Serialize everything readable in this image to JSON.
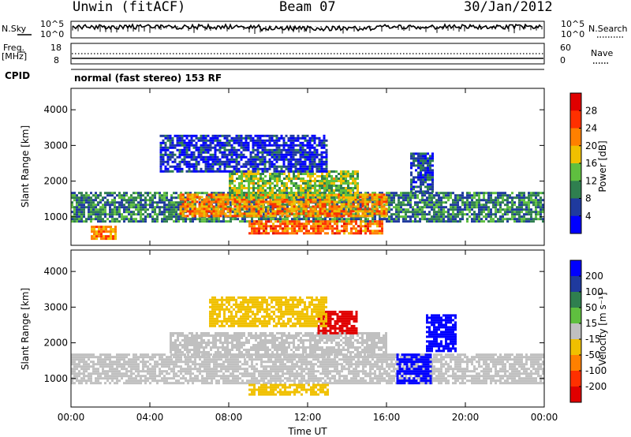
{
  "header": {
    "site_title": "Unwin (fitACF)",
    "beam": "Beam 07",
    "date": "30/Jan/2012"
  },
  "info_panels": {
    "nsky_label": "N.Sky",
    "nsearch_label": "N.Search",
    "nsky_ticks": [
      "10^5",
      "10^0"
    ],
    "nsearch_ticks": [
      "10^5",
      "10^0"
    ],
    "freq_label": "Freq.",
    "freq_unit": "[MHz]",
    "freq_ticks": [
      "18",
      "8"
    ],
    "nave_label": "Nave",
    "nave_ticks": [
      "60",
      "0"
    ],
    "cpid_label": "CPID",
    "cpid_value": "normal (fast stereo) 153 RF"
  },
  "chart_data": [
    {
      "type": "heatmap",
      "name": "power",
      "ylabel": "Slant Range [km]",
      "yticks": [
        "1000",
        "2000",
        "3000",
        "4000"
      ],
      "ylim": [
        200,
        4600
      ],
      "xlim": [
        0,
        24
      ],
      "colorbar_label": "Power [dB]",
      "colorbar_ticks": [
        "4",
        "8",
        "12",
        "16",
        "20",
        "24",
        "28"
      ],
      "colorbar_colors": [
        "#0000ff",
        "#1f3a9e",
        "#2f7f4f",
        "#5fbf3f",
        "#f0c000",
        "#ff8000",
        "#ff3000",
        "#e00000"
      ],
      "colorbar_range": [
        0,
        30
      ],
      "features": [
        {
          "start_ut": 0.0,
          "end_ut": 24.0,
          "range_low_km": 900,
          "range_high_km": 1700,
          "value_db": 9
        },
        {
          "start_ut": 5.5,
          "end_ut": 16.0,
          "range_low_km": 1050,
          "range_high_km": 1650,
          "value_db": 20
        },
        {
          "start_ut": 8.0,
          "end_ut": 14.5,
          "range_low_km": 1550,
          "range_high_km": 2300,
          "value_db": 14
        },
        {
          "start_ut": 9.0,
          "end_ut": 15.8,
          "range_low_km": 550,
          "range_high_km": 900,
          "value_db": 22
        },
        {
          "start_ut": 1.0,
          "end_ut": 2.3,
          "range_low_km": 400,
          "range_high_km": 750,
          "value_db": 20
        },
        {
          "start_ut": 4.5,
          "end_ut": 13.0,
          "range_low_km": 2300,
          "range_high_km": 3300,
          "value_db": 4
        },
        {
          "start_ut": 17.2,
          "end_ut": 18.4,
          "range_low_km": 1700,
          "range_high_km": 2800,
          "value_db": 6
        }
      ]
    },
    {
      "type": "heatmap",
      "name": "velocity",
      "ylabel": "Slant Range [km]",
      "yticks": [
        "1000",
        "2000",
        "3000",
        "4000"
      ],
      "ylim": [
        200,
        4600
      ],
      "xlim": [
        0,
        24
      ],
      "xticks": [
        "00:00",
        "04:00",
        "08:00",
        "12:00",
        "16:00",
        "20:00",
        "00:00"
      ],
      "xlabel": "Time UT",
      "colorbar_label": "Velocity [m s⁻¹]",
      "colorbar_ticks": [
        "200",
        "100",
        "50",
        "15",
        "-15",
        "-50",
        "-100",
        "-200"
      ],
      "colorbar_colors": [
        "#0000ff",
        "#1f3a9e",
        "#2f7f4f",
        "#5fbf3f",
        "#c0c0c0",
        "#f0c000",
        "#ff8000",
        "#ff3000",
        "#e00000"
      ],
      "features": [
        {
          "start_ut": 0.0,
          "end_ut": 24.0,
          "range_low_km": 900,
          "range_high_km": 1700,
          "value_ms": 0
        },
        {
          "start_ut": 5.0,
          "end_ut": 16.0,
          "range_low_km": 1600,
          "range_high_km": 2300,
          "value_ms": 0
        },
        {
          "start_ut": 9.0,
          "end_ut": 13.0,
          "range_low_km": 550,
          "range_high_km": 850,
          "value_ms": -40
        },
        {
          "start_ut": 16.5,
          "end_ut": 18.2,
          "range_low_km": 900,
          "range_high_km": 1700,
          "value_ms": 200
        },
        {
          "start_ut": 18.0,
          "end_ut": 19.5,
          "range_low_km": 1800,
          "range_high_km": 2800,
          "value_ms": 200
        },
        {
          "start_ut": 12.5,
          "end_ut": 14.5,
          "range_low_km": 2300,
          "range_high_km": 2900,
          "value_ms": -200
        },
        {
          "start_ut": 7.0,
          "end_ut": 13.0,
          "range_low_km": 2500,
          "range_high_km": 3300,
          "value_ms": -40
        }
      ]
    }
  ]
}
